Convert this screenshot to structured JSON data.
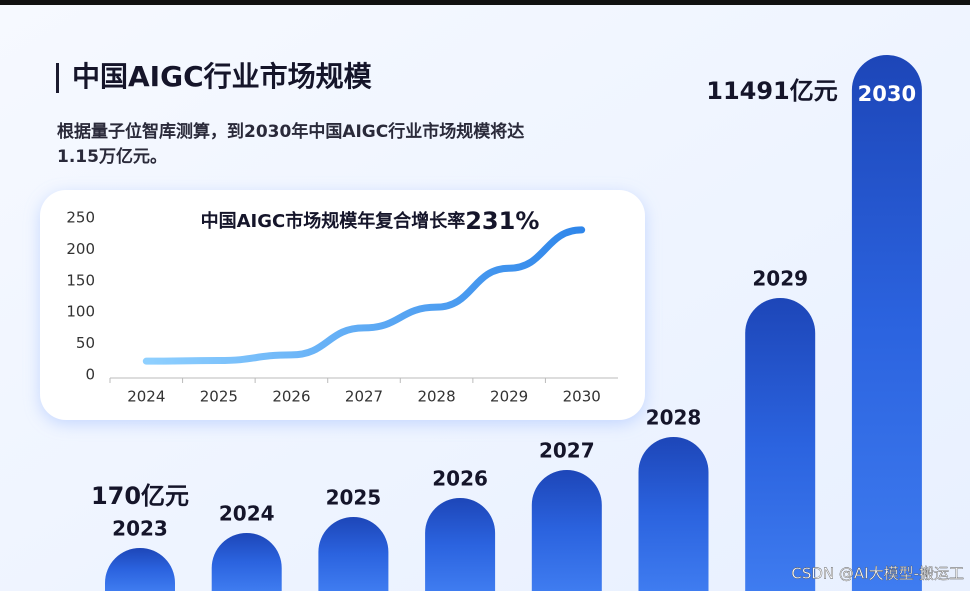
{
  "header": {
    "title": "中国AIGC行业市场规模",
    "subtitle_lines": [
      "根据量子位智库测算，到2030年中国AIGC行业市场规模将达",
      "1.15万亿元。"
    ]
  },
  "chart_data": [
    {
      "type": "line",
      "title": "中国AIGC市场规模年复合增长率",
      "title_emphasis": "231%",
      "categories": [
        "2024",
        "2025",
        "2026",
        "2027",
        "2028",
        "2029",
        "2030"
      ],
      "values": [
        22,
        23,
        32,
        75,
        108,
        170,
        231
      ],
      "color": "#4aa3f0",
      "ylim": [
        0,
        250
      ],
      "yticks": [
        0,
        50,
        100,
        150,
        200,
        250
      ]
    },
    {
      "type": "bar",
      "categories": [
        "2023",
        "2024",
        "2025",
        "2026",
        "2027",
        "2028",
        "2029",
        "2030"
      ],
      "annotations": [
        "170亿元",
        "11491亿元"
      ],
      "color": "#1f4fc8"
    }
  ],
  "watermark": "CSDN @AI大模型-搬运工"
}
